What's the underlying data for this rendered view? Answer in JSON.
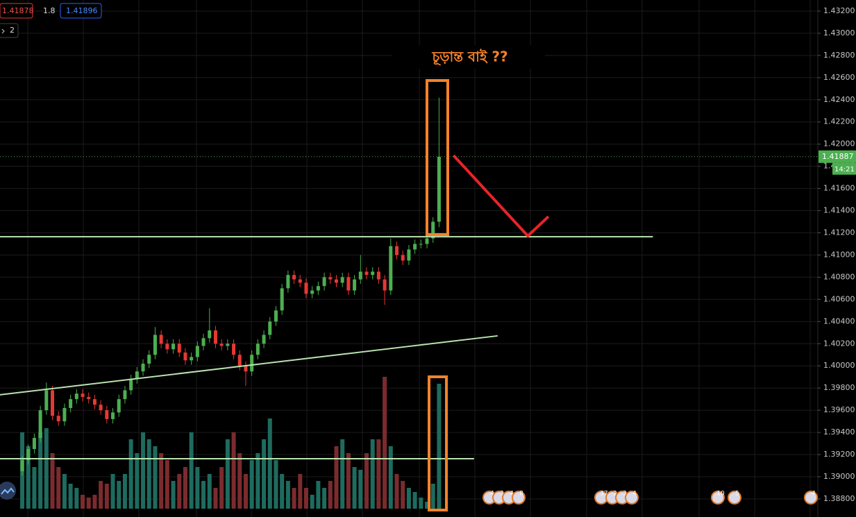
{
  "chart_data": {
    "type": "candlestick",
    "header": {
      "open_label": "1.41878",
      "spread": "1.8",
      "close_label": "1.41896",
      "indicator_count": "2"
    },
    "annotation": "চূড়ান্ত বাই ??",
    "last_price": {
      "value": 1.41887,
      "label": "1.41887",
      "countdown": "14:21"
    },
    "up_color": "#4caf50",
    "down_color": "#e53935",
    "volume_up_color": "#1e6b5f",
    "volume_down_color": "#7b2b2e",
    "grid": true,
    "xlim": [
      -3.68,
      131.7
    ],
    "ylim": [
      1.38637,
      1.433
    ],
    "yticks": [
      {
        "value": 1.388,
        "label": "1.38800"
      },
      {
        "value": 1.39,
        "label": "1.39000"
      },
      {
        "value": 1.392,
        "label": "1.39200"
      },
      {
        "value": 1.394,
        "label": "1.39400"
      },
      {
        "value": 1.396,
        "label": "1.39600"
      },
      {
        "value": 1.398,
        "label": "1.39800"
      },
      {
        "value": 1.4,
        "label": "1.40000"
      },
      {
        "value": 1.402,
        "label": "1.40200"
      },
      {
        "value": 1.404,
        "label": "1.40400"
      },
      {
        "value": 1.406,
        "label": "1.40600"
      },
      {
        "value": 1.408,
        "label": "1.40800"
      },
      {
        "value": 1.41,
        "label": "1.41000"
      },
      {
        "value": 1.412,
        "label": "1.41200"
      },
      {
        "value": 1.414,
        "label": "1.41400"
      },
      {
        "value": 1.416,
        "label": "1.41600"
      },
      {
        "value": 1.418,
        "label": "1.41800"
      },
      {
        "value": 1.42,
        "label": "1.42000"
      },
      {
        "value": 1.422,
        "label": "1.42200"
      },
      {
        "value": 1.424,
        "label": "1.42400"
      },
      {
        "value": 1.426,
        "label": "1.42600"
      },
      {
        "value": 1.428,
        "label": "1.42800"
      },
      {
        "value": 1.43,
        "label": "1.43000"
      },
      {
        "value": 1.432,
        "label": "1.43200"
      }
    ],
    "open": [
      1.3905,
      1.3915,
      1.3925,
      1.3935,
      1.396,
      1.3978,
      1.3955,
      1.395,
      1.3962,
      1.397,
      1.3975,
      1.3972,
      1.397,
      1.3965,
      1.396,
      1.3952,
      1.3958,
      1.397,
      1.3978,
      1.3988,
      1.3995,
      1.4002,
      1.401,
      1.4028,
      1.402,
      1.4015,
      1.402,
      1.4012,
      1.4005,
      1.4008,
      1.4018,
      1.4025,
      1.4032,
      1.402,
      1.4018,
      1.402,
      1.401,
      1.4,
      1.3995,
      1.401,
      1.402,
      1.4028,
      1.404,
      1.405,
      1.407,
      1.4082,
      1.4078,
      1.4075,
      1.4065,
      1.4068,
      1.4072,
      1.408,
      1.4078,
      1.4075,
      1.408,
      1.4068,
      1.4078,
      1.4085,
      1.4082,
      1.4085,
      1.4078,
      1.4068,
      1.4108,
      1.41,
      1.4095,
      1.4105,
      1.411,
      1.411,
      1.4115,
      1.413
    ],
    "high": [
      1.3919,
      1.3929,
      1.3939,
      1.3964,
      1.3985,
      1.3982,
      1.3959,
      1.3966,
      1.3974,
      1.3979,
      1.3979,
      1.3976,
      1.3974,
      1.3969,
      1.3964,
      1.3962,
      1.3974,
      1.3982,
      1.3992,
      1.3999,
      1.4006,
      1.4014,
      1.4035,
      1.4032,
      1.4024,
      1.4024,
      1.4024,
      1.4016,
      1.4012,
      1.4022,
      1.4029,
      1.4052,
      1.4036,
      1.4024,
      1.4024,
      1.4024,
      1.4014,
      1.4004,
      1.4014,
      1.4024,
      1.4032,
      1.4044,
      1.4054,
      1.4074,
      1.4086,
      1.4086,
      1.4082,
      1.4079,
      1.4072,
      1.4076,
      1.4084,
      1.4084,
      1.4082,
      1.4084,
      1.4084,
      1.4082,
      1.41,
      1.4089,
      1.4089,
      1.4089,
      1.4082,
      1.4115,
      1.4112,
      1.4104,
      1.4109,
      1.4114,
      1.4114,
      1.4119,
      1.4134,
      1.4242
    ],
    "low": [
      1.3901,
      1.3911,
      1.3921,
      1.3931,
      1.3956,
      1.3951,
      1.3946,
      1.3946,
      1.3958,
      1.3966,
      1.3968,
      1.3966,
      1.3961,
      1.3956,
      1.3948,
      1.3948,
      1.3954,
      1.3966,
      1.3974,
      1.3984,
      1.3991,
      1.3998,
      1.4006,
      1.4016,
      1.4011,
      1.4011,
      1.4008,
      1.4001,
      1.4001,
      1.4004,
      1.4014,
      1.4021,
      1.4016,
      1.4014,
      1.4014,
      1.4006,
      1.3996,
      1.3982,
      1.3991,
      1.4006,
      1.4016,
      1.4024,
      1.4036,
      1.4046,
      1.4066,
      1.4074,
      1.4071,
      1.4061,
      1.4061,
      1.4064,
      1.4068,
      1.4074,
      1.4071,
      1.4071,
      1.4064,
      1.4064,
      1.4074,
      1.4078,
      1.4078,
      1.4074,
      1.4055,
      1.4064,
      1.4096,
      1.4091,
      1.4091,
      1.4101,
      1.4106,
      1.4106,
      1.4111,
      1.4125
    ],
    "close": [
      1.3915,
      1.3925,
      1.3935,
      1.396,
      1.3978,
      1.3955,
      1.395,
      1.3962,
      1.397,
      1.3975,
      1.3972,
      1.397,
      1.3965,
      1.396,
      1.3952,
      1.3958,
      1.397,
      1.3978,
      1.3988,
      1.3995,
      1.4002,
      1.401,
      1.4028,
      1.402,
      1.4015,
      1.402,
      1.4012,
      1.4005,
      1.4008,
      1.4018,
      1.4025,
      1.4032,
      1.402,
      1.4018,
      1.402,
      1.401,
      1.4,
      1.3995,
      1.401,
      1.402,
      1.4028,
      1.404,
      1.405,
      1.407,
      1.4082,
      1.4078,
      1.4075,
      1.4065,
      1.4068,
      1.4072,
      1.408,
      1.4078,
      1.4075,
      1.408,
      1.4068,
      1.4078,
      1.4085,
      1.4082,
      1.4085,
      1.4078,
      1.4068,
      1.4108,
      1.41,
      1.4095,
      1.4105,
      1.411,
      1.411,
      1.4115,
      1.413,
      1.41887
    ],
    "volume_lim": [
      0,
      100
    ],
    "volume": [
      55,
      45,
      30,
      55,
      58,
      40,
      30,
      25,
      18,
      15,
      10,
      8,
      10,
      20,
      18,
      25,
      20,
      25,
      50,
      40,
      55,
      50,
      45,
      40,
      35,
      20,
      25,
      30,
      55,
      30,
      20,
      25,
      15,
      30,
      50,
      55,
      40,
      25,
      35,
      40,
      50,
      65,
      35,
      25,
      20,
      15,
      25,
      15,
      10,
      20,
      15,
      20,
      45,
      50,
      40,
      30,
      28,
      40,
      50,
      50,
      95,
      45,
      25,
      20,
      15,
      12,
      8,
      5,
      18,
      90
    ],
    "lines": [
      {
        "color": "#b9e3b0",
        "x": [
          -3.68,
          104.4
        ],
        "y": [
          1.41165,
          1.41165
        ]
      },
      {
        "color": "#b9e3b0",
        "x": [
          -3.68,
          78.7
        ],
        "y": [
          1.39739,
          1.40271
        ]
      },
      {
        "color": "#b9e3b0",
        "x": [
          -3.68,
          74.8
        ],
        "y": [
          1.39163,
          1.39163
        ]
      },
      {
        "color": "#e8232a",
        "x": [
          71.4,
          83.7,
          87.1
        ],
        "y": [
          1.41898,
          1.41172,
          1.41347
        ]
      }
    ],
    "events": [
      {
        "label": "4"
      },
      {
        "label": "3"
      },
      {
        "label": "4"
      },
      {
        "label": "8"
      },
      {
        "label": "37"
      },
      {
        "label": "2"
      },
      {
        "label": "3"
      },
      {
        "label": "4"
      },
      {
        "label": "10"
      },
      {
        "label": "5"
      },
      {
        "label": "4"
      }
    ]
  }
}
